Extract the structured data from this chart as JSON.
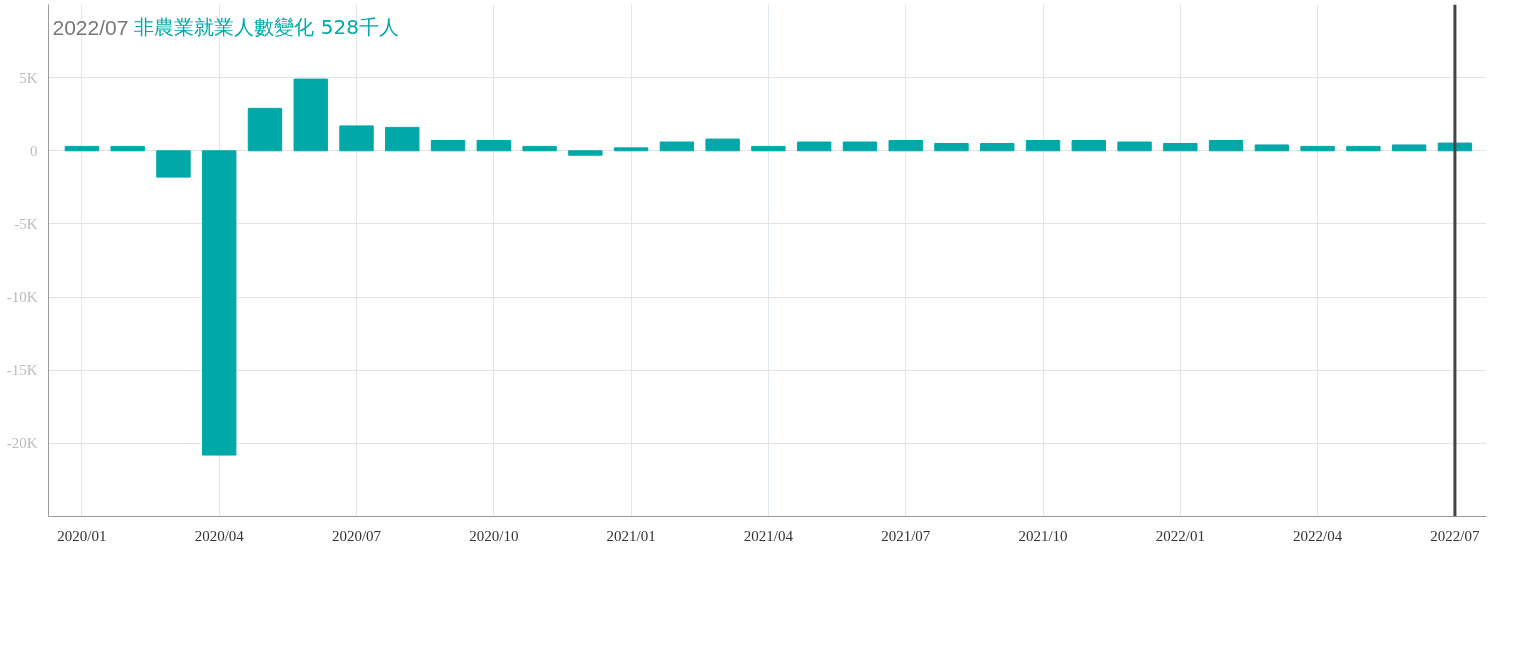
{
  "chart_data": {
    "type": "bar",
    "title": "2022/07  非農業就業人數變化 528千人",
    "categories": [
      "2020/01",
      null,
      null,
      "2020/04",
      null,
      null,
      "2020/07",
      null,
      null,
      "2020/10",
      null,
      null,
      "2021/01",
      null,
      null,
      "2021/04",
      null,
      null,
      "2021/07",
      null,
      null,
      "2021/10",
      null,
      null,
      "2022/01",
      null,
      null,
      "2022/04",
      null,
      null,
      "2022/07"
    ],
    "values": [
      300,
      300,
      -1800,
      -20800,
      2900,
      4900,
      1700,
      1600,
      700,
      700,
      300,
      -300,
      200,
      600,
      800,
      300,
      600,
      600,
      700,
      500,
      500,
      700,
      700,
      600,
      500,
      700,
      400,
      300,
      300,
      400,
      528
    ],
    "color": "#00a8a8",
    "ylim": [
      -25000,
      10000
    ],
    "yticks": [
      {
        "value": 5000,
        "label": "5K"
      },
      0,
      {
        "value": -5000,
        "label": "-5K"
      },
      {
        "value": -10000,
        "label": "-10K"
      },
      {
        "value": -15000,
        "label": "-15K"
      },
      {
        "value": -20000,
        "label": "-20K"
      }
    ],
    "grid": true,
    "ref_lines": [
      {
        "axis": "x",
        "value": "2022/07",
        "color": "#444444"
      }
    ]
  }
}
